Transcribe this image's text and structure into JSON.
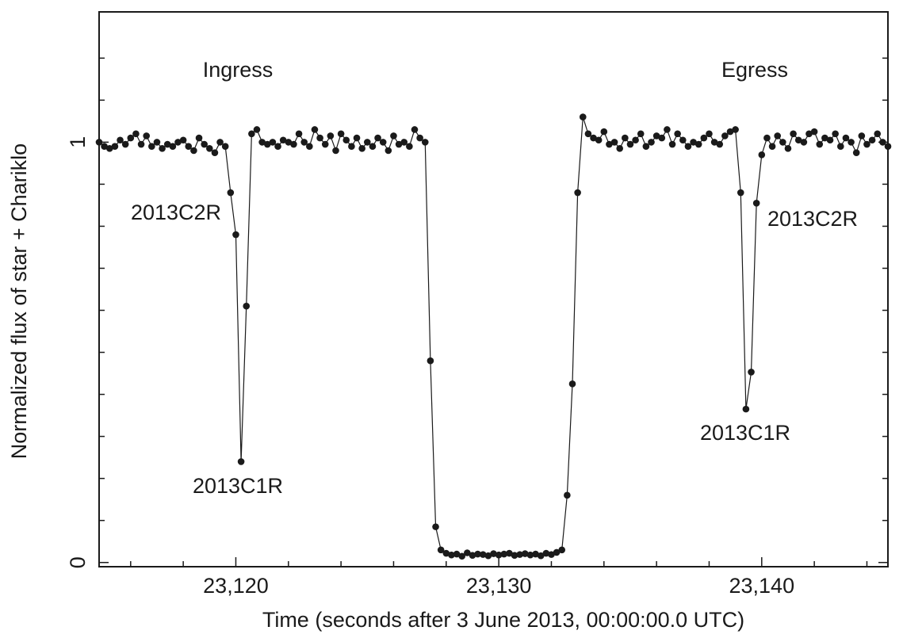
{
  "chart_data": {
    "type": "line",
    "xlabel": "Time (seconds after 3 June 2013, 00:00:00.0 UTC)",
    "ylabel": "Normalized flux of star + Chariklo",
    "annotations": [
      "Ingress",
      "Egress",
      "2013C2R",
      "2013C1R",
      "2013C2R",
      "2013C1R"
    ],
    "x": [
      23114.8,
      23115,
      23115.2,
      23115.4,
      23115.6,
      23115.8,
      23116,
      23116.2,
      23116.4,
      23116.6,
      23116.8,
      23117,
      23117.2,
      23117.4,
      23117.6,
      23117.8,
      23118,
      23118.2,
      23118.4,
      23118.6,
      23118.8,
      23119,
      23119.2,
      23119.4,
      23119.6,
      23119.8,
      23120,
      23120.2,
      23120.4,
      23120.6,
      23120.8,
      23121,
      23121.2,
      23121.4,
      23121.6,
      23121.8,
      23122,
      23122.2,
      23122.4,
      23122.6,
      23122.8,
      23123,
      23123.2,
      23123.4,
      23123.6,
      23123.8,
      23124,
      23124.2,
      23124.4,
      23124.6,
      23124.8,
      23125,
      23125.2,
      23125.4,
      23125.6,
      23125.8,
      23126,
      23126.2,
      23126.4,
      23126.6,
      23126.8,
      23127,
      23127.2,
      23127.4,
      23127.6,
      23127.8,
      23128,
      23128.2,
      23128.4,
      23128.6,
      23128.8,
      23129,
      23129.2,
      23129.4,
      23129.6,
      23129.8,
      23130,
      23130.2,
      23130.4,
      23130.6,
      23130.8,
      23131,
      23131.2,
      23131.4,
      23131.6,
      23131.8,
      23132,
      23132.2,
      23132.4,
      23132.6,
      23132.8,
      23133,
      23133.2,
      23133.4,
      23133.6,
      23133.8,
      23134,
      23134.2,
      23134.4,
      23134.6,
      23134.8,
      23135,
      23135.2,
      23135.4,
      23135.6,
      23135.8,
      23136,
      23136.2,
      23136.4,
      23136.6,
      23136.8,
      23137,
      23137.2,
      23137.4,
      23137.6,
      23137.8,
      23138,
      23138.2,
      23138.4,
      23138.6,
      23138.8,
      23139,
      23139.2,
      23139.4,
      23139.6,
      23139.8,
      23140,
      23140.2,
      23140.4,
      23140.6,
      23140.8,
      23141,
      23141.2,
      23141.4,
      23141.6,
      23141.8,
      23142,
      23142.2,
      23142.4,
      23142.6,
      23142.8,
      23143,
      23143.2,
      23143.4,
      23143.6,
      23143.8,
      23144,
      23144.2,
      23144.4,
      23144.6,
      23144.8
    ],
    "series": [
      {
        "color": "#1a1a1a",
        "values": [
          1.0,
          0.99,
          0.985,
          0.99,
          1.005,
          0.995,
          1.01,
          1.02,
          0.995,
          1.015,
          0.99,
          1.0,
          0.985,
          0.995,
          0.99,
          1.0,
          1.005,
          0.99,
          0.98,
          1.01,
          0.995,
          0.985,
          0.975,
          1.0,
          0.99,
          0.88,
          0.78,
          0.24,
          0.61,
          1.02,
          1.03,
          1.0,
          0.995,
          1.0,
          0.99,
          1.005,
          1.0,
          0.995,
          1.02,
          1.0,
          0.99,
          1.03,
          1.01,
          0.995,
          1.015,
          0.98,
          1.02,
          1.005,
          0.99,
          1.01,
          0.985,
          1.0,
          0.99,
          1.01,
          1.0,
          0.98,
          1.015,
          0.995,
          1.0,
          0.99,
          1.03,
          1.01,
          1.0,
          0.48,
          0.085,
          0.03,
          0.022,
          0.018,
          0.02,
          0.015,
          0.023,
          0.017,
          0.02,
          0.019,
          0.016,
          0.021,
          0.018,
          0.02,
          0.022,
          0.017,
          0.019,
          0.021,
          0.018,
          0.02,
          0.016,
          0.022,
          0.019,
          0.024,
          0.03,
          0.16,
          0.425,
          0.88,
          1.06,
          1.02,
          1.01,
          1.005,
          1.025,
          0.995,
          1.0,
          0.985,
          1.01,
          0.995,
          1.005,
          1.02,
          0.99,
          1.0,
          1.015,
          1.01,
          1.03,
          0.995,
          1.02,
          1.005,
          0.99,
          1.0,
          0.995,
          1.01,
          1.02,
          1.0,
          0.995,
          1.015,
          1.025,
          1.03,
          0.88,
          0.365,
          0.453,
          0.855,
          0.97,
          1.01,
          0.99,
          1.015,
          1.0,
          0.985,
          1.02,
          1.005,
          1.0,
          1.02,
          1.025,
          0.995,
          1.01,
          1.005,
          1.02,
          0.99,
          1.01,
          1.0,
          0.975,
          1.015,
          0.995,
          1.005,
          1.02,
          1.0,
          0.99
        ]
      }
    ],
    "xlim": [
      23114.8,
      23144.8
    ],
    "ylim": [
      -0.01,
      1.31
    ],
    "xticks": [
      {
        "value": 23120,
        "label": "23,120"
      },
      {
        "value": 23130,
        "label": "23,130"
      },
      {
        "value": 23140,
        "label": "23,140"
      }
    ],
    "xminorticks": [
      23116,
      23118,
      23122,
      23124,
      23126,
      23128,
      23132,
      23134,
      23136,
      23138,
      23142,
      23144
    ],
    "yticks": [
      0,
      1
    ],
    "yminorticks": [
      0.1,
      0.2,
      0.3,
      0.4,
      0.5,
      0.6,
      0.7,
      0.8,
      0.9,
      1.1,
      1.2
    ]
  }
}
